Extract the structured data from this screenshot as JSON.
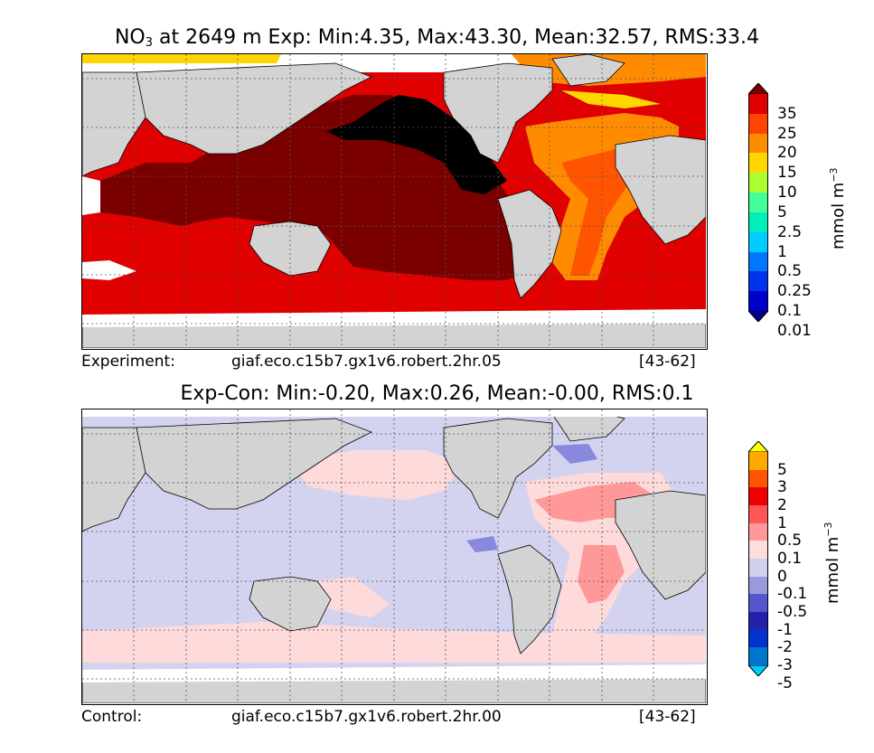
{
  "top_panel": {
    "title_species": "NO",
    "title_sub": "3",
    "title_rest": " at 2649 m Exp: Min:4.35, Max:43.30, Mean:32.57, RMS:33.4",
    "caption_left": "Experiment:",
    "caption_center": "giaf.eco.c15b7.gx1v6.robert.2hr.05",
    "caption_right": "[43-62]",
    "colorbar": {
      "labels": [
        "35",
        "25",
        "20",
        "15",
        "10",
        "5",
        "2.5",
        "1",
        "0.5",
        "0.25",
        "0.1",
        "0.01"
      ],
      "colors": [
        "#7a0000",
        "#e00000",
        "#ff4400",
        "#ff8c00",
        "#ffd700",
        "#aaff33",
        "#44ff99",
        "#00eebb",
        "#00ccff",
        "#0077ff",
        "#0033ee",
        "#0000cc",
        "#000088"
      ],
      "unit_base": "mmol m",
      "unit_exp": "−3"
    },
    "map_colors": {
      "land": "#d3d3d3",
      "nodata": "#ffffff",
      "deep": "#7a0000",
      "south": "#e00000",
      "atlantic": "#ff8c00",
      "atl_core": "#ff5500",
      "np_max": "#000000"
    }
  },
  "bottom_panel": {
    "title": "Exp-Con: Min:-0.20, Max:0.26, Mean:-0.00, RMS:0.1",
    "caption_left": "Control:",
    "caption_center": "giaf.eco.c15b7.gx1v6.robert.2hr.00",
    "caption_right": "[43-62]",
    "colorbar": {
      "labels": [
        "5",
        "3",
        "2",
        "1",
        "0.5",
        "0.1",
        "0",
        "-0.1",
        "-0.5",
        "-1",
        "-2",
        "-3",
        "-5"
      ],
      "colors": [
        "#ffff00",
        "#ffaa00",
        "#ff5500",
        "#ee0000",
        "#ff5555",
        "#ff9999",
        "#ffdddd",
        "#d0d0f0",
        "#9999dd",
        "#5555cc",
        "#2222aa",
        "#0033cc",
        "#0077cc",
        "#00ccff"
      ],
      "unit_base": "mmol m",
      "unit_exp": "−3"
    },
    "map_colors": {
      "land": "#d3d3d3",
      "nodata": "#ffffff",
      "neg_light": "#d3d3f0",
      "pos_light": "#ffdada",
      "pos_mid": "#ff9999",
      "neg_mid": "#8888dd"
    }
  }
}
